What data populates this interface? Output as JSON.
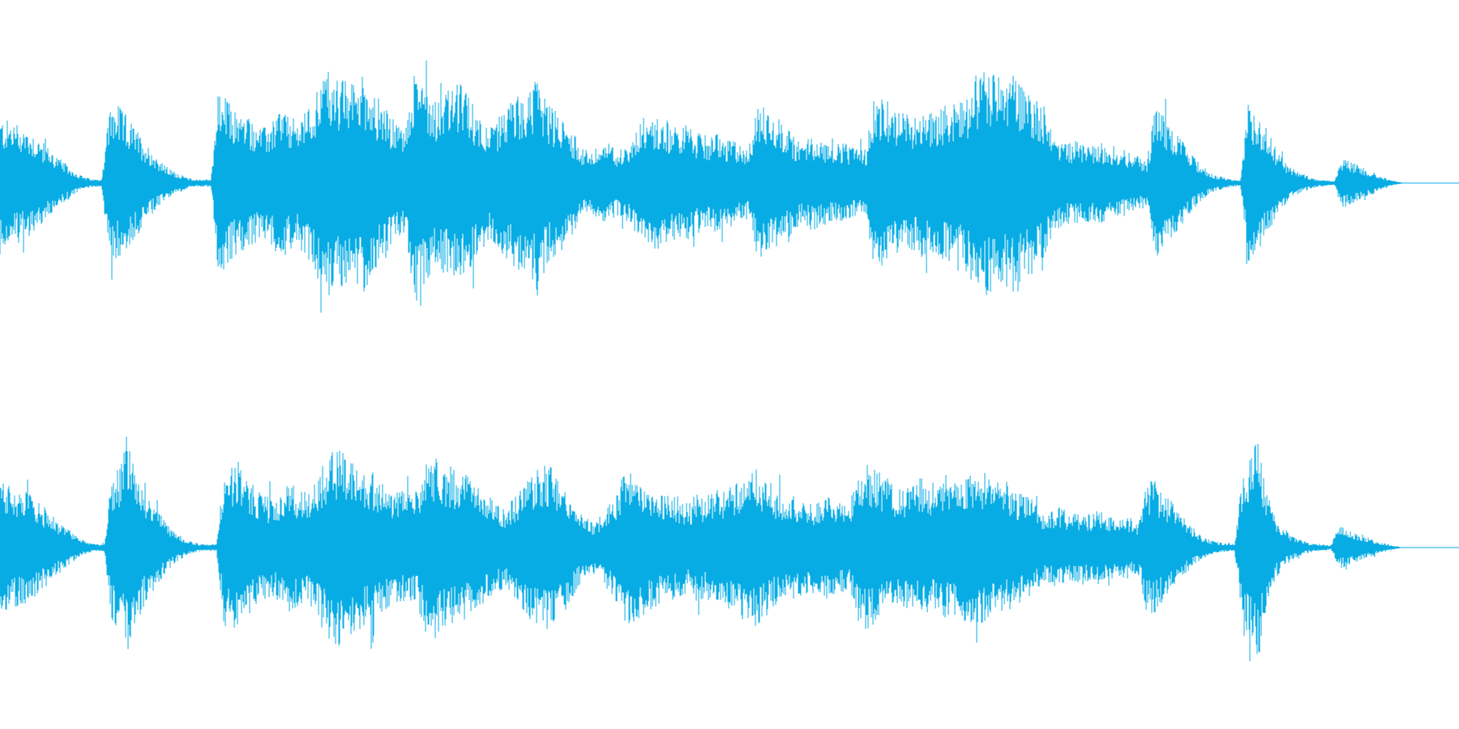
{
  "waveform": {
    "color": "#08ace4",
    "background": "#ffffff",
    "channels": [
      {
        "name": "",
        "envelope": [
          0.35,
          0.34,
          0.33,
          0.31,
          0.28,
          0.24,
          0.2,
          0.16,
          0.12,
          0.08,
          0.05,
          0.03,
          0.02,
          0.02,
          0.4,
          0.42,
          0.38,
          0.32,
          0.26,
          0.2,
          0.15,
          0.1,
          0.07,
          0.05,
          0.03,
          0.02,
          0.02,
          0.02,
          0.5,
          0.46,
          0.4,
          0.38,
          0.36,
          0.32,
          0.3,
          0.34,
          0.42,
          0.36,
          0.34,
          0.38,
          0.44,
          0.56,
          0.62,
          0.58,
          0.56,
          0.54,
          0.6,
          0.58,
          0.48,
          0.44,
          0.36,
          0.32,
          0.3,
          0.58,
          0.66,
          0.5,
          0.46,
          0.5,
          0.52,
          0.54,
          0.48,
          0.4,
          0.34,
          0.3,
          0.36,
          0.42,
          0.48,
          0.46,
          0.5,
          0.62,
          0.44,
          0.4,
          0.36,
          0.3,
          0.24,
          0.16,
          0.18,
          0.2,
          0.22,
          0.18,
          0.2,
          0.22,
          0.34,
          0.38,
          0.36,
          0.34,
          0.32,
          0.3,
          0.32,
          0.28,
          0.26,
          0.24,
          0.28,
          0.22,
          0.24,
          0.2,
          0.2,
          0.4,
          0.42,
          0.38,
          0.34,
          0.3,
          0.24,
          0.22,
          0.26,
          0.24,
          0.22,
          0.2,
          0.22,
          0.2,
          0.18,
          0.18,
          0.48,
          0.46,
          0.44,
          0.4,
          0.38,
          0.36,
          0.4,
          0.38,
          0.4,
          0.42,
          0.44,
          0.46,
          0.48,
          0.58,
          0.62,
          0.6,
          0.58,
          0.56,
          0.6,
          0.54,
          0.5,
          0.46,
          0.42,
          0.26,
          0.24,
          0.22,
          0.22,
          0.22,
          0.2,
          0.22,
          0.2,
          0.2,
          0.18,
          0.16,
          0.14,
          0.12,
          0.42,
          0.38,
          0.3,
          0.26,
          0.2,
          0.14,
          0.1,
          0.06,
          0.04,
          0.03,
          0.02,
          0.02,
          0.44,
          0.4,
          0.32,
          0.24,
          0.16,
          0.1,
          0.07,
          0.05,
          0.03,
          0.02,
          0.02,
          0.01,
          0.14,
          0.12,
          0.1,
          0.08,
          0.06,
          0.04,
          0.02,
          0.01,
          0,
          0,
          0,
          0,
          0,
          0,
          0,
          0
        ]
      },
      {
        "name": "",
        "envelope": [
          0.35,
          0.34,
          0.33,
          0.31,
          0.28,
          0.24,
          0.2,
          0.16,
          0.12,
          0.08,
          0.05,
          0.03,
          0.02,
          0.02,
          0.4,
          0.44,
          0.62,
          0.4,
          0.32,
          0.24,
          0.18,
          0.12,
          0.08,
          0.05,
          0.03,
          0.02,
          0.02,
          0.02,
          0.44,
          0.46,
          0.42,
          0.36,
          0.32,
          0.28,
          0.26,
          0.3,
          0.36,
          0.32,
          0.3,
          0.34,
          0.42,
          0.5,
          0.54,
          0.5,
          0.48,
          0.44,
          0.42,
          0.4,
          0.34,
          0.3,
          0.3,
          0.32,
          0.3,
          0.46,
          0.5,
          0.48,
          0.44,
          0.42,
          0.4,
          0.36,
          0.32,
          0.28,
          0.24,
          0.22,
          0.26,
          0.32,
          0.38,
          0.42,
          0.46,
          0.44,
          0.38,
          0.3,
          0.22,
          0.16,
          0.14,
          0.18,
          0.24,
          0.3,
          0.46,
          0.4,
          0.38,
          0.34,
          0.32,
          0.3,
          0.3,
          0.26,
          0.24,
          0.3,
          0.26,
          0.32,
          0.3,
          0.34,
          0.36,
          0.42,
          0.44,
          0.4,
          0.36,
          0.3,
          0.26,
          0.28,
          0.26,
          0.24,
          0.26,
          0.28,
          0.26,
          0.24,
          0.24,
          0.42,
          0.46,
          0.44,
          0.4,
          0.36,
          0.32,
          0.34,
          0.36,
          0.38,
          0.36,
          0.34,
          0.38,
          0.36,
          0.4,
          0.44,
          0.42,
          0.4,
          0.36,
          0.38,
          0.34,
          0.3,
          0.28,
          0.26,
          0.18,
          0.2,
          0.22,
          0.2,
          0.18,
          0.2,
          0.18,
          0.2,
          0.18,
          0.16,
          0.18,
          0.16,
          0.14,
          0.34,
          0.38,
          0.3,
          0.26,
          0.2,
          0.14,
          0.1,
          0.06,
          0.04,
          0.03,
          0.02,
          0.02,
          0.4,
          0.5,
          0.62,
          0.3,
          0.18,
          0.12,
          0.07,
          0.05,
          0.03,
          0.02,
          0.02,
          0.01,
          0.12,
          0.1,
          0.08,
          0.07,
          0.05,
          0.03,
          0.02,
          0.01,
          0,
          0,
          0,
          0,
          0,
          0,
          0,
          0
        ]
      }
    ]
  }
}
